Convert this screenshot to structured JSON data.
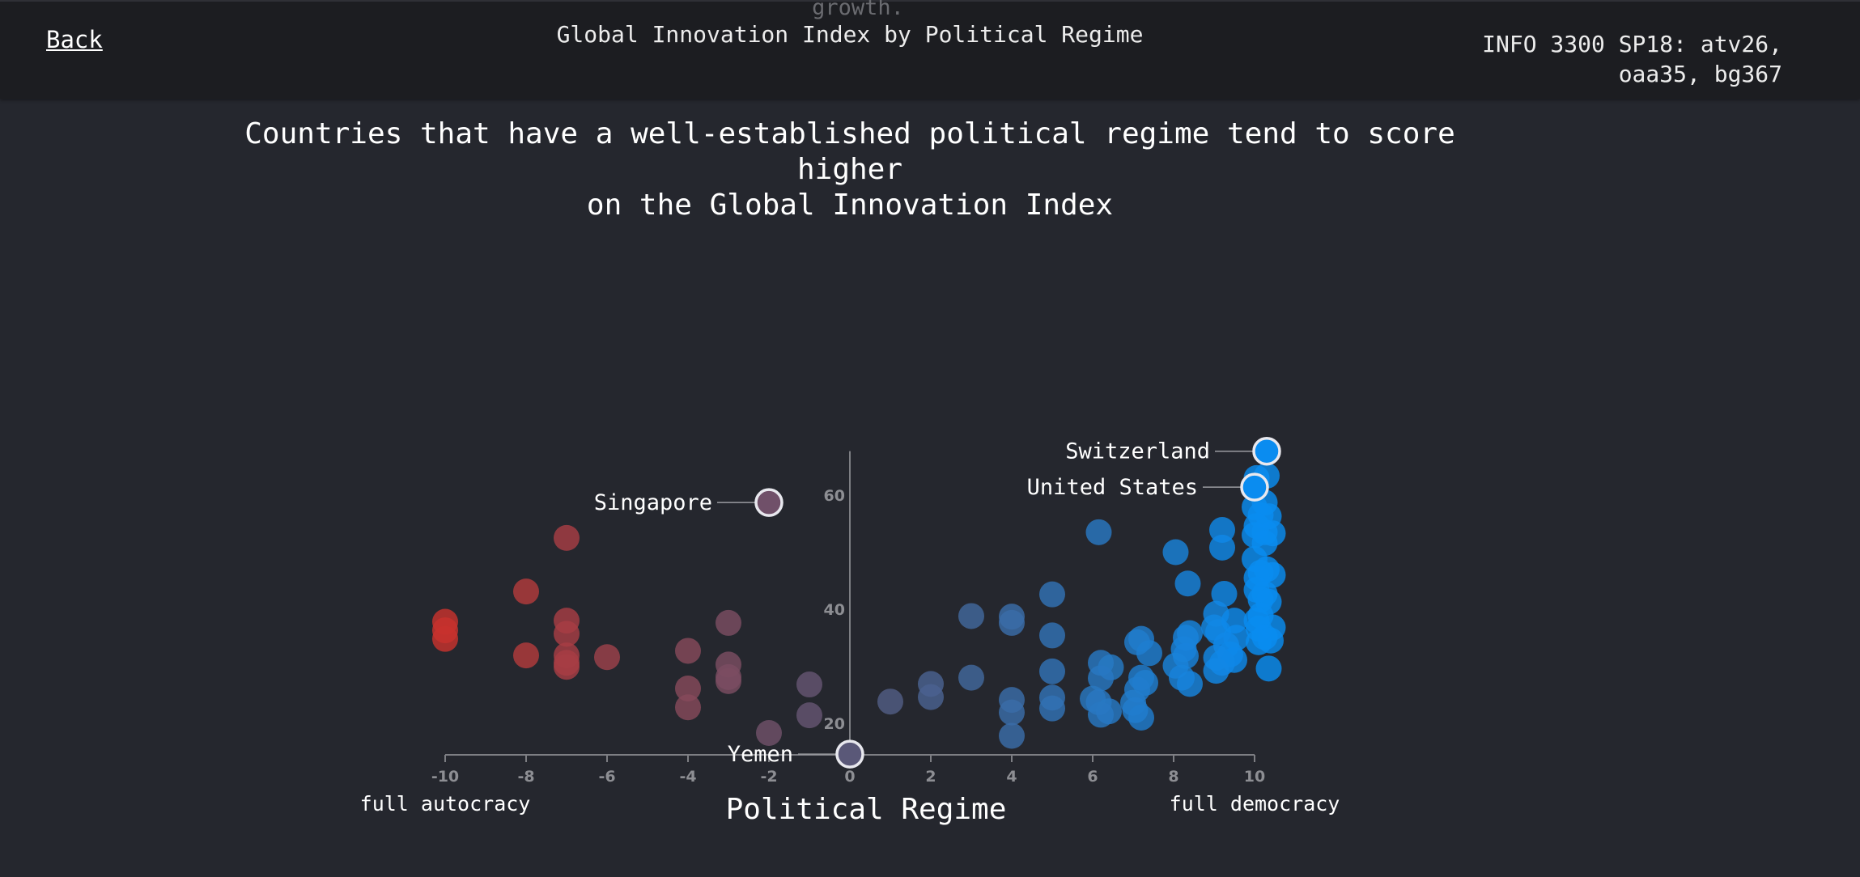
{
  "header": {
    "back_label": "Back",
    "ghost_text": "growth.",
    "title": "Global Innovation Index by Political Regime",
    "credits_line1": "INFO 3300 SP18: atv26,",
    "credits_line2": "oaa35, bg367"
  },
  "headline": {
    "line1": "Countries that have a well-established political regime tend to score higher",
    "line2": "on the Global Innovation Index"
  },
  "chart_data": {
    "type": "scatter",
    "title": "",
    "xlabel": "Political Regime",
    "x_left_label": "full autocracy",
    "x_right_label": "full democracy",
    "ylabel": "",
    "xlim": [
      -10,
      10
    ],
    "ylim": [
      10,
      68
    ],
    "xticks": [
      -10,
      -8,
      -6,
      -4,
      -2,
      0,
      2,
      4,
      6,
      8,
      10
    ],
    "yticks": [
      20,
      40,
      60
    ],
    "grid": false,
    "colors": {
      "autocracy": "#c8322d",
      "neutral": "#5a5878",
      "democracy": "#0a8cf0"
    },
    "points": [
      [
        -10,
        37.8
      ],
      [
        -10,
        36.3
      ],
      [
        -10,
        34.8
      ],
      [
        -8,
        43.1
      ],
      [
        -8,
        31.9
      ],
      [
        -7,
        52.5
      ],
      [
        -7,
        38
      ],
      [
        -7,
        35.7
      ],
      [
        -7,
        31.9
      ],
      [
        -7,
        30.6
      ],
      [
        -7,
        29.9
      ],
      [
        -6,
        31.6
      ],
      [
        -4,
        32.7
      ],
      [
        -4,
        26.1
      ],
      [
        -4,
        22.8
      ],
      [
        -3,
        37.6
      ],
      [
        -3,
        30.3
      ],
      [
        -3,
        28.1
      ],
      [
        -3,
        27.4
      ],
      [
        -2,
        18.3
      ],
      [
        -1,
        26.8
      ],
      [
        -1,
        21.4
      ],
      [
        1,
        23.8
      ],
      [
        2,
        26.9
      ],
      [
        2,
        24.6
      ],
      [
        3,
        38.8
      ],
      [
        3,
        28
      ],
      [
        4,
        38.7
      ],
      [
        4,
        37.6
      ],
      [
        4,
        24.1
      ],
      [
        4,
        21.9
      ],
      [
        4,
        17.8
      ],
      [
        5,
        42.6
      ],
      [
        5,
        35.4
      ],
      [
        5,
        29.1
      ],
      [
        5,
        24.5
      ],
      [
        5,
        22.6
      ],
      [
        6.15,
        53.5
      ],
      [
        6.2,
        30.6
      ],
      [
        6.45,
        29.8
      ],
      [
        6.2,
        27.9
      ],
      [
        6,
        24.3
      ],
      [
        6.15,
        23.7
      ],
      [
        6.4,
        22.1
      ],
      [
        6.2,
        21.5
      ],
      [
        7.2,
        34.8
      ],
      [
        7.1,
        34.2
      ],
      [
        7.4,
        32.3
      ],
      [
        7.2,
        28
      ],
      [
        7.3,
        27.1
      ],
      [
        7.1,
        25.9
      ],
      [
        7,
        23.6
      ],
      [
        7.05,
        22.3
      ],
      [
        7.2,
        21
      ],
      [
        8.05,
        50
      ],
      [
        8.35,
        44.5
      ],
      [
        8.4,
        35.8
      ],
      [
        8.3,
        35
      ],
      [
        8.25,
        33
      ],
      [
        8.3,
        31.8
      ],
      [
        8.05,
        30.1
      ],
      [
        8.2,
        28
      ],
      [
        8.4,
        26.9
      ],
      [
        9.2,
        53.9
      ],
      [
        9.2,
        50.8
      ],
      [
        9.25,
        42.7
      ],
      [
        9.05,
        39.2
      ],
      [
        9,
        36.8
      ],
      [
        9.1,
        36
      ],
      [
        9.5,
        38
      ],
      [
        9.55,
        35
      ],
      [
        9.3,
        33.7
      ],
      [
        9.4,
        32.1
      ],
      [
        9.05,
        31.5
      ],
      [
        9.5,
        31.1
      ],
      [
        9.2,
        30.6
      ],
      [
        9.05,
        29.2
      ],
      [
        10.3,
        63.4
      ],
      [
        10.05,
        63
      ],
      [
        10.25,
        58.7
      ],
      [
        10,
        57.9
      ],
      [
        10.15,
        56.5
      ],
      [
        10.35,
        56.3
      ],
      [
        10.05,
        54.6
      ],
      [
        10.25,
        53.5
      ],
      [
        10.45,
        53.3
      ],
      [
        10,
        53
      ],
      [
        10.25,
        51.6
      ],
      [
        10,
        48.8
      ],
      [
        10.3,
        47
      ],
      [
        10.15,
        46.4
      ],
      [
        10.45,
        46
      ],
      [
        10.05,
        45.5
      ],
      [
        10.05,
        43.4
      ],
      [
        10.25,
        42.7
      ],
      [
        10.15,
        41.7
      ],
      [
        10.35,
        41.3
      ],
      [
        10.15,
        38.9
      ],
      [
        10.05,
        38
      ],
      [
        10.45,
        36.8
      ],
      [
        10.1,
        36.6
      ],
      [
        10.25,
        35.1
      ],
      [
        10.4,
        34.5
      ],
      [
        10.1,
        34.2
      ],
      [
        10.35,
        29.6
      ]
    ],
    "labeled_points": [
      {
        "name": "Switzerland",
        "x": 10.3,
        "y": 67.7,
        "side": "left"
      },
      {
        "name": "United States",
        "x": 10,
        "y": 61.4,
        "side": "left"
      },
      {
        "name": "Singapore",
        "x": -2,
        "y": 58.7,
        "side": "left"
      },
      {
        "name": "Yemen",
        "x": 0,
        "y": 14.6,
        "side": "left"
      }
    ]
  }
}
